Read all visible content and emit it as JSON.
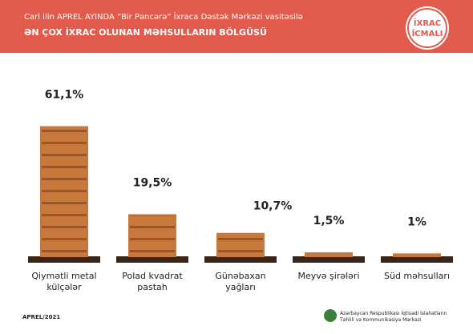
{
  "header": {
    "subtitle_line": "Cari ilin APREL AYINDA “Bir Pəncərə” İxraca Dəstək Mərkəzi vasitəsilə",
    "title": "ƏN ÇOX İXRAC OLUNAN MƏHSULLARIN BÖLGÜSÜ",
    "badge": [
      "İXRAC",
      "İCMALI"
    ]
  },
  "chart_data": {
    "type": "bar",
    "categories": [
      "Qiymətli metal külçələr",
      "Polad kvadrat pastah",
      "Günəbaxan yağları",
      "Meyvə şirələri",
      "Süd məhsulları"
    ],
    "values": [
      61.1,
      19.5,
      10.7,
      1.5,
      1
    ],
    "value_labels": [
      "61,1%",
      "19,5%",
      "10,7%",
      "1,5%",
      "1%"
    ],
    "color": "#c8783a",
    "ylim": [
      0,
      70
    ]
  },
  "footer": {
    "date": "APREL/2021",
    "org": [
      "Azərbaycan Respublikası İqtisadi İslahatların",
      "Təhlili və Kommunikasiya Mərkəzi"
    ]
  }
}
